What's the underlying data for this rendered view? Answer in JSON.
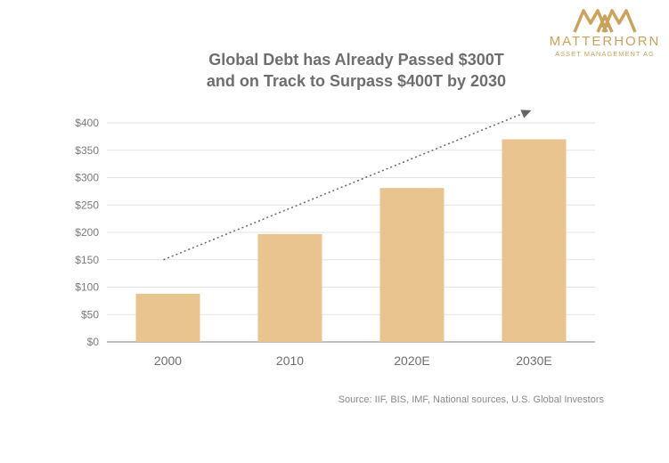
{
  "logo": {
    "text": "MATTERHORN",
    "subtext": "ASSET MANAGEMENT AG",
    "color": "#caa25a"
  },
  "title_line1": "Global Debt has Already Passed $300T",
  "title_line2": "and on Track to Surpass $400T by 2030",
  "source": "Source: IIF, BIS, IMF, National sources, U.S. Global Investors",
  "chart_data": {
    "type": "bar",
    "title": "Global Debt has Already Passed $300T and on Track to Surpass $400T by 2030",
    "xlabel": "",
    "ylabel": "",
    "categories": [
      "2000",
      "2010",
      "2020E",
      "2030E"
    ],
    "values": [
      88,
      197,
      281,
      370
    ],
    "ylim": [
      0,
      400
    ],
    "yticks": [
      0,
      50,
      100,
      150,
      200,
      250,
      300,
      350,
      400
    ],
    "ytick_labels": [
      "$0",
      "$50",
      "$100",
      "$150",
      "$200",
      "$250",
      "$300",
      "$350",
      "$400"
    ],
    "grid": true,
    "bar_color": "#e9c48f",
    "trend_arrow": {
      "from": [
        "2000",
        150
      ],
      "to": [
        "2030E",
        423
      ],
      "style": "dotted"
    }
  }
}
